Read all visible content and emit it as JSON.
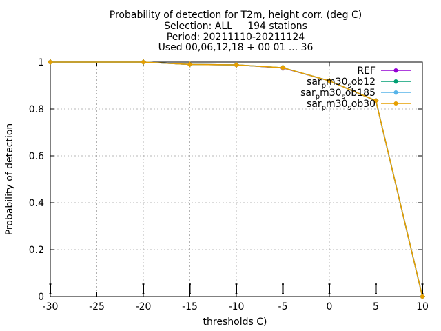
{
  "chart_data": {
    "type": "line",
    "title_lines": [
      "Probability of detection  for T2m, height corr. (deg C)",
      "Selection: ALL     194 stations",
      "Period: 20211110-20211124",
      "Used 00,06,12,18 + 00 01 ... 36"
    ],
    "xlabel": "thresholds C)",
    "ylabel": "Probability of detection",
    "xlim": [
      -30,
      10
    ],
    "ylim": [
      0,
      1
    ],
    "xticks": [
      -30,
      -25,
      -20,
      -15,
      -10,
      -5,
      0,
      5,
      10
    ],
    "yticks": [
      0,
      0.2,
      0.4,
      0.6,
      0.8,
      1
    ],
    "ytick_labels": [
      "0",
      "0.2",
      "0.4",
      "0.6",
      "0.8",
      "1"
    ],
    "grid": true,
    "legend_position": "top-right",
    "x": [
      -30,
      -20,
      -15,
      -10,
      -5,
      0,
      5,
      10
    ],
    "series": [
      {
        "name": "REF",
        "legend": {
          "base": "REF",
          "sub": "",
          "mid": "",
          "sup": "",
          "end": ""
        },
        "color": "#9400d3",
        "marker": "plus-filled",
        "values": [
          1.0,
          1.0,
          0.99,
          0.988,
          0.975,
          0.92,
          0.835,
          0.0
        ]
      },
      {
        "name": "sar_pm30_sob12",
        "legend": {
          "base": "sar",
          "sub": "p",
          "mid": "m30",
          "sup": "s",
          "end": "ob12"
        },
        "color": "#009e73",
        "marker": "plus-filled",
        "values": [
          1.0,
          1.0,
          0.99,
          0.988,
          0.976,
          0.92,
          0.835,
          0.0
        ]
      },
      {
        "name": "sar_pm30_sob185",
        "legend": {
          "base": "sar",
          "sub": "p",
          "mid": "m30",
          "sup": "s",
          "end": "ob185"
        },
        "color": "#56b4e9",
        "marker": "plus-filled",
        "values": [
          1.0,
          1.0,
          0.99,
          0.988,
          0.976,
          0.92,
          0.835,
          0.0
        ]
      },
      {
        "name": "sar_pm30_sob30",
        "legend": {
          "base": "sar",
          "sub": "p",
          "mid": "m30",
          "sup": "s",
          "end": "ob30"
        },
        "color": "#e69f00",
        "marker": "plus-filled",
        "values": [
          1.0,
          1.0,
          0.99,
          0.988,
          0.976,
          0.92,
          0.835,
          0.0
        ]
      }
    ]
  }
}
